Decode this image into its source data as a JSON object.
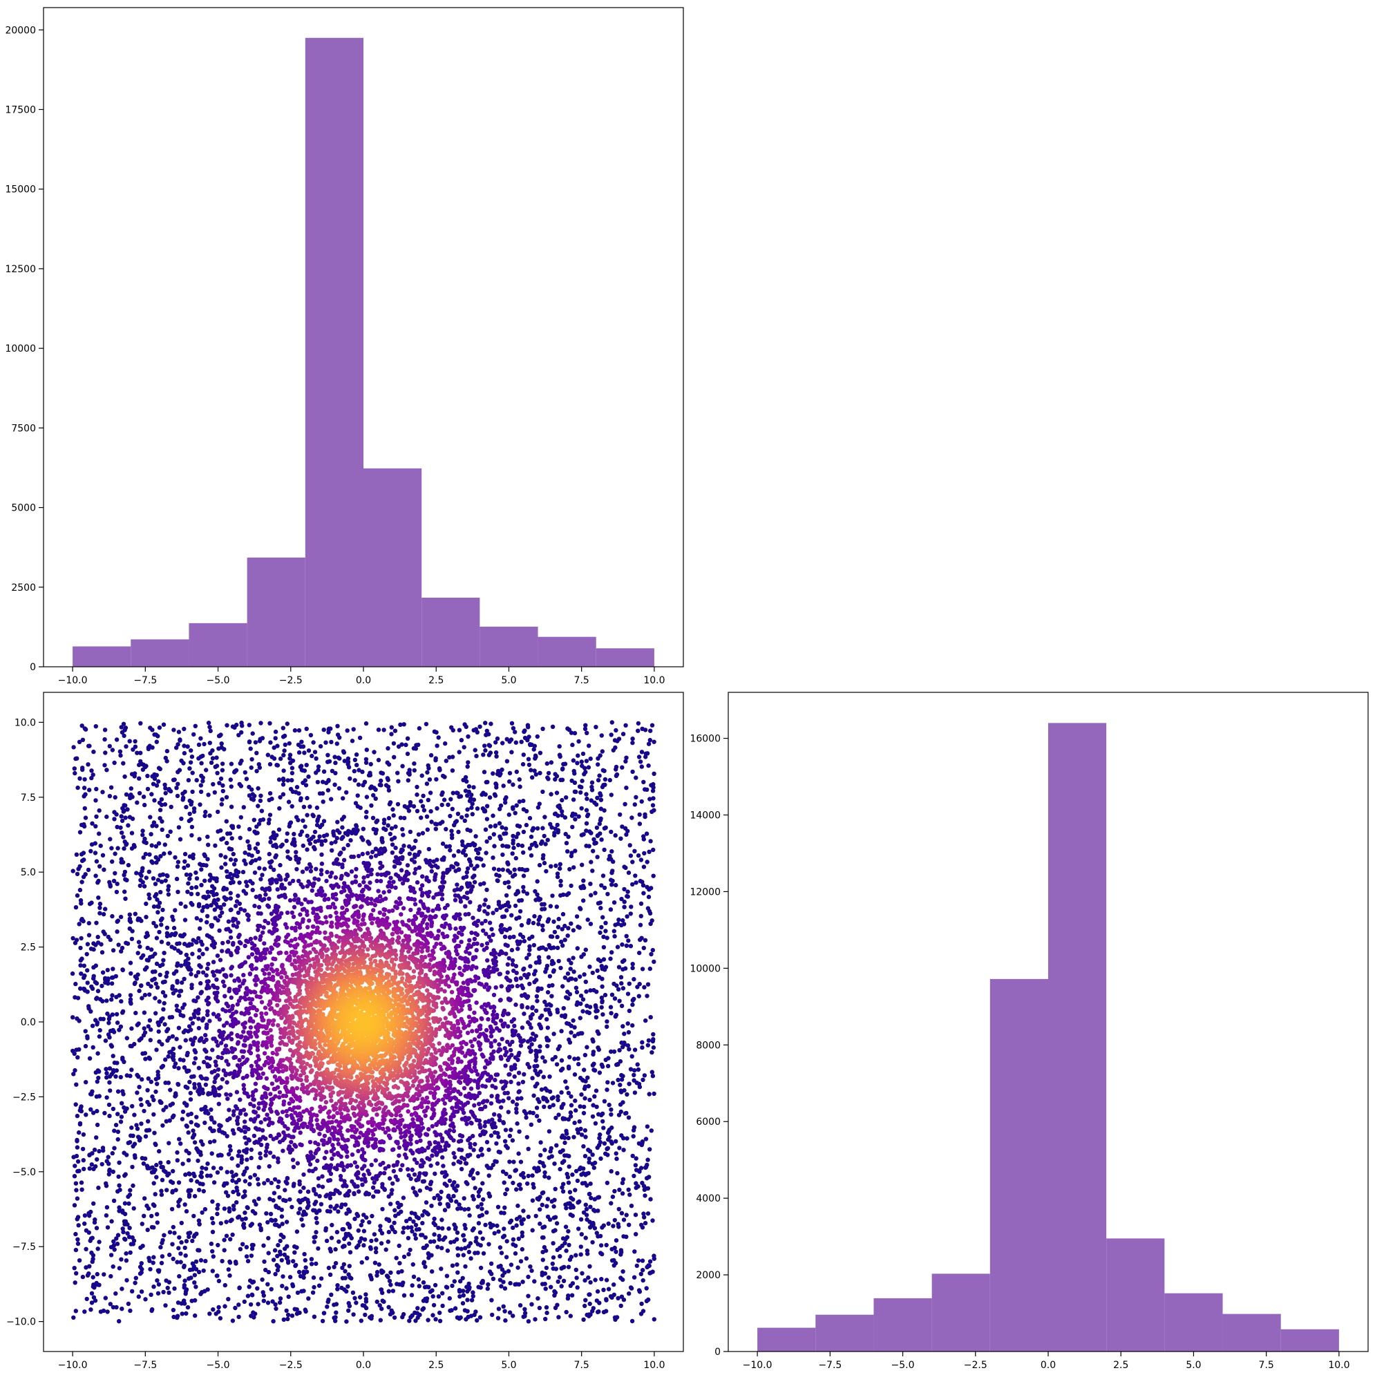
{
  "chart_data": [
    {
      "id": "top-histogram",
      "type": "bar",
      "variant": "histogram",
      "title": "",
      "xlabel": "",
      "ylabel": "",
      "bin_edges": [
        -10,
        -8,
        -6,
        -4,
        -2,
        0,
        2,
        4,
        6,
        8,
        10
      ],
      "values": [
        640,
        860,
        1370,
        3430,
        19750,
        6230,
        2170,
        1260,
        940,
        580
      ],
      "xlim": [
        -11,
        11
      ],
      "ylim": [
        0,
        20700
      ],
      "x_ticks": [
        -10,
        -7.5,
        -5,
        -2.5,
        0,
        2.5,
        5,
        7.5,
        10
      ],
      "x_tick_labels": [
        "−10.0",
        "−7.5",
        "−5.0",
        "−2.5",
        "0.0",
        "2.5",
        "5.0",
        "7.5",
        "10.0"
      ],
      "y_ticks": [
        0,
        2500,
        5000,
        7500,
        10000,
        12500,
        15000,
        17500,
        20000
      ],
      "y_tick_labels": [
        "0",
        "2500",
        "5000",
        "7500",
        "10000",
        "12500",
        "15000",
        "17500",
        "20000"
      ],
      "grid": false,
      "color": "#9467bd"
    },
    {
      "id": "scatter",
      "type": "scatter",
      "title": "",
      "xlabel": "",
      "ylabel": "",
      "description_of_points": "about 10000 points: ~5000 uniform on [-10,10]x[-10,10] plus ~5000 clustered around (0,0); color encodes density (plasma colormap, dark purple sparse to yellow dense)",
      "x_range": [
        -10,
        10
      ],
      "y_range": [
        -10,
        10
      ],
      "xlim": [
        -11,
        11
      ],
      "ylim": [
        -11,
        11
      ],
      "x_ticks": [
        -10,
        -7.5,
        -5,
        -2.5,
        0,
        2.5,
        5,
        7.5,
        10
      ],
      "x_tick_labels": [
        "−10.0",
        "−7.5",
        "−5.0",
        "−2.5",
        "0.0",
        "2.5",
        "5.0",
        "7.5",
        "10.0"
      ],
      "y_ticks": [
        -10,
        -7.5,
        -5,
        -2.5,
        0,
        2.5,
        5,
        7.5,
        10
      ],
      "y_tick_labels": [
        "−10.0",
        "−7.5",
        "−5.0",
        "−2.5",
        "0.0",
        "2.5",
        "5.0",
        "7.5",
        "10.0"
      ],
      "colormap": "plasma",
      "grid": false
    },
    {
      "id": "right-histogram",
      "type": "bar",
      "variant": "histogram",
      "title": "",
      "xlabel": "",
      "ylabel": "",
      "bin_edges": [
        -10,
        -8,
        -6,
        -4,
        -2,
        0,
        2,
        4,
        6,
        8,
        10
      ],
      "values": [
        620,
        960,
        1390,
        2030,
        9720,
        16400,
        2950,
        1520,
        980,
        580
      ],
      "xlim": [
        -11,
        11
      ],
      "ylim": [
        0,
        17200
      ],
      "x_ticks": [
        -10,
        -7.5,
        -5,
        -2.5,
        0,
        2.5,
        5,
        7.5,
        10
      ],
      "x_tick_labels": [
        "−10.0",
        "−7.5",
        "−5.0",
        "−2.5",
        "0.0",
        "2.5",
        "5.0",
        "7.5",
        "10.0"
      ],
      "y_ticks": [
        0,
        2000,
        4000,
        6000,
        8000,
        10000,
        12000,
        14000,
        16000
      ],
      "y_tick_labels": [
        "0",
        "2000",
        "4000",
        "6000",
        "8000",
        "10000",
        "12000",
        "14000",
        "16000"
      ],
      "grid": false,
      "color": "#9467bd"
    }
  ]
}
